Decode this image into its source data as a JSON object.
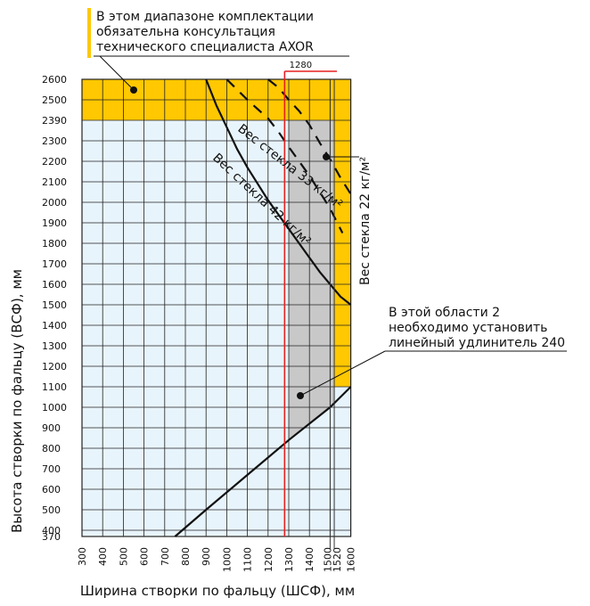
{
  "colors": {
    "yellow": "#ffc800",
    "light_blue": "#e8f4fb",
    "gray_region": "#c8c8c8",
    "grid": "#222222",
    "red": "#e52020",
    "curve": "#111111"
  },
  "chart_data": {
    "type": "line",
    "xlabel": "Ширина створки по фальцу (ШСФ), мм",
    "ylabel": "Высота створки по фальцу (ВСФ), мм",
    "xlim": [
      300,
      1600
    ],
    "ylim": [
      370,
      2600
    ],
    "x_ticks": [
      "300",
      "400",
      "500",
      "600",
      "700",
      "800",
      "900",
      "1000",
      "1100",
      "1200",
      "1300",
      "1400",
      "1500",
      "1520",
      "1600"
    ],
    "y_ticks": [
      "370",
      "400",
      "500",
      "600",
      "700",
      "800",
      "900",
      "1000",
      "1100",
      "1200",
      "1300",
      "1400",
      "1500",
      "1600",
      "1700",
      "1800",
      "1900",
      "2000",
      "2100",
      "2200",
      "2300",
      "2390",
      "2500",
      "2600"
    ],
    "grid": true,
    "reference_line": {
      "x": 1280,
      "label": "1280"
    },
    "reference_verticals": [
      1500,
      1520
    ],
    "regions": {
      "consultation_top": {
        "x": [
          300,
          1600
        ],
        "y": [
          2390,
          2600
        ]
      },
      "consultation_right": {
        "x": [
          1520,
          1600
        ],
        "y": [
          1100,
          2390
        ]
      },
      "extender_area": {
        "x_from": 1300,
        "x_to": 1520
      }
    },
    "series": [
      {
        "name": "Вес стекла 42 кг/м²",
        "style": "solid",
        "x": [
          900,
          950,
          1000,
          1050,
          1100,
          1150,
          1200,
          1250,
          1300,
          1350,
          1400,
          1450,
          1500,
          1550,
          1600
        ],
        "y": [
          2600,
          2470,
          2360,
          2260,
          2170,
          2090,
          2010,
          1940,
          1870,
          1800,
          1730,
          1660,
          1600,
          1540,
          1500
        ]
      },
      {
        "name": "Вес стекла 33 кг/м²",
        "style": "dashed",
        "x": [
          1000,
          1050,
          1100,
          1150,
          1200,
          1250,
          1300,
          1350,
          1400,
          1450,
          1500,
          1520,
          1560
        ],
        "y": [
          2600,
          2550,
          2500,
          2450,
          2400,
          2340,
          2270,
          2200,
          2130,
          2050,
          1970,
          1930,
          1850
        ]
      },
      {
        "name": "Вес стекла 22 кг/м²",
        "style": "dashed",
        "x": [
          1200,
          1250,
          1300,
          1350,
          1400,
          1450,
          1500,
          1550,
          1600
        ],
        "y": [
          2600,
          2560,
          2500,
          2440,
          2370,
          2290,
          2210,
          2120,
          2040
        ]
      },
      {
        "name": "",
        "style": "solid",
        "x": [
          750,
          900,
          1100,
          1300,
          1500,
          1600
        ],
        "y": [
          370,
          500,
          670,
          840,
          1000,
          1100
        ]
      }
    ],
    "annotations": [
      {
        "text": "В этом диапазоне комплектации обязательна консультация технического специалиста AXOR",
        "lines": [
          "В этом диапазоне комплектации",
          "обязательна консультация",
          "технического специалиста AXOR"
        ]
      },
      {
        "text": "В этой области 2 необходимо установить линейный удлинитель 240",
        "lines": [
          "В этой области 2",
          "необходимо установить",
          "линейный удлинитель 240"
        ]
      }
    ],
    "curve_labels": [
      {
        "text": "Вес стекла 42 кг/м²"
      },
      {
        "text": "Вес стекла 33 кг/м²"
      },
      {
        "text": "Вес стекла 22 кг/м²"
      }
    ]
  }
}
